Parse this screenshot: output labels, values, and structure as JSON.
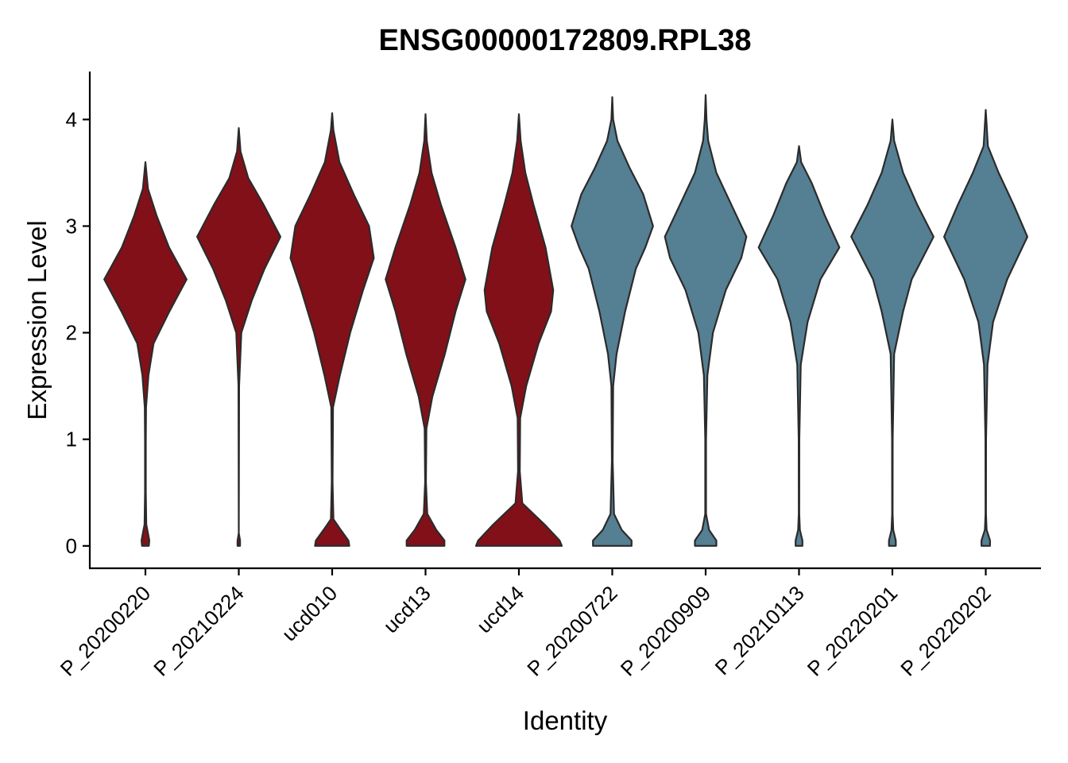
{
  "chart_data": {
    "type": "violin",
    "title": "ENSG00000172809.RPL38",
    "xlabel": "Identity",
    "ylabel": "Expression Level",
    "ylim": [
      -0.21,
      4.45
    ],
    "yticks": [
      0,
      1,
      2,
      3,
      4
    ],
    "grid": false,
    "legend": "none",
    "colors": {
      "red": "#821019",
      "blue": "#557f92"
    },
    "categories": [
      "P_20200220",
      "P_20210224",
      "ucd010",
      "ucd13",
      "ucd14",
      "P_20200722",
      "P_20200909",
      "P_20210113",
      "P_20220201",
      "P_20220202"
    ],
    "violins": [
      {
        "name": "P_20200220",
        "color": "red",
        "ymax": 3.6,
        "profile": [
          [
            0,
            0.08
          ],
          [
            0.05,
            0.09
          ],
          [
            0.12,
            0.06
          ],
          [
            0.2,
            0.02
          ],
          [
            0.5,
            0.01
          ],
          [
            1.0,
            0.01
          ],
          [
            1.3,
            0.015
          ],
          [
            1.6,
            0.07
          ],
          [
            1.9,
            0.19
          ],
          [
            2.2,
            0.56
          ],
          [
            2.5,
            0.96
          ],
          [
            2.8,
            0.55
          ],
          [
            3.1,
            0.26
          ],
          [
            3.35,
            0.06
          ],
          [
            3.6,
            0.0
          ]
        ]
      },
      {
        "name": "P_20210224",
        "color": "red",
        "ymax": 3.92,
        "profile": [
          [
            0,
            0.03
          ],
          [
            0.05,
            0.03
          ],
          [
            0.12,
            0.0
          ],
          [
            1.5,
            0.008
          ],
          [
            2.0,
            0.06
          ],
          [
            2.3,
            0.3
          ],
          [
            2.6,
            0.6
          ],
          [
            2.9,
            0.97
          ],
          [
            3.2,
            0.58
          ],
          [
            3.45,
            0.22
          ],
          [
            3.7,
            0.04
          ],
          [
            3.92,
            0.0
          ]
        ]
      },
      {
        "name": "ucd010",
        "color": "red",
        "ymax": 4.06,
        "profile": [
          [
            0,
            0.4
          ],
          [
            0.05,
            0.38
          ],
          [
            0.15,
            0.2
          ],
          [
            0.25,
            0.03
          ],
          [
            0.6,
            0.01
          ],
          [
            1.3,
            0.02
          ],
          [
            1.6,
            0.18
          ],
          [
            2.0,
            0.42
          ],
          [
            2.4,
            0.72
          ],
          [
            2.7,
            0.97
          ],
          [
            3.0,
            0.86
          ],
          [
            3.3,
            0.5
          ],
          [
            3.6,
            0.17
          ],
          [
            3.9,
            0.03
          ],
          [
            4.06,
            0.0
          ]
        ]
      },
      {
        "name": "ucd13",
        "color": "red",
        "ymax": 4.05,
        "profile": [
          [
            0,
            0.44
          ],
          [
            0.05,
            0.44
          ],
          [
            0.15,
            0.25
          ],
          [
            0.3,
            0.04
          ],
          [
            0.6,
            0.01
          ],
          [
            1.1,
            0.02
          ],
          [
            1.4,
            0.16
          ],
          [
            1.8,
            0.45
          ],
          [
            2.2,
            0.7
          ],
          [
            2.5,
            0.93
          ],
          [
            2.8,
            0.7
          ],
          [
            3.2,
            0.36
          ],
          [
            3.5,
            0.14
          ],
          [
            3.8,
            0.03
          ],
          [
            4.05,
            0.0
          ]
        ]
      },
      {
        "name": "ucd14",
        "color": "red",
        "ymax": 4.05,
        "profile": [
          [
            0,
            1.0
          ],
          [
            0.05,
            0.95
          ],
          [
            0.2,
            0.6
          ],
          [
            0.4,
            0.08
          ],
          [
            0.7,
            0.02
          ],
          [
            1.2,
            0.03
          ],
          [
            1.5,
            0.17
          ],
          [
            1.9,
            0.46
          ],
          [
            2.2,
            0.75
          ],
          [
            2.4,
            0.8
          ],
          [
            2.8,
            0.62
          ],
          [
            3.2,
            0.34
          ],
          [
            3.5,
            0.15
          ],
          [
            3.8,
            0.04
          ],
          [
            4.05,
            0.0
          ]
        ]
      },
      {
        "name": "P_20200722",
        "color": "blue",
        "ymax": 4.21,
        "profile": [
          [
            0,
            0.45
          ],
          [
            0.05,
            0.45
          ],
          [
            0.15,
            0.22
          ],
          [
            0.3,
            0.04
          ],
          [
            0.8,
            0.01
          ],
          [
            1.5,
            0.02
          ],
          [
            1.8,
            0.1
          ],
          [
            2.2,
            0.3
          ],
          [
            2.6,
            0.55
          ],
          [
            2.8,
            0.77
          ],
          [
            3.0,
            0.95
          ],
          [
            3.3,
            0.72
          ],
          [
            3.55,
            0.4
          ],
          [
            3.8,
            0.12
          ],
          [
            4.0,
            0.02
          ],
          [
            4.21,
            0.0
          ]
        ]
      },
      {
        "name": "P_20200909",
        "color": "blue",
        "ymax": 4.23,
        "profile": [
          [
            0,
            0.25
          ],
          [
            0.05,
            0.25
          ],
          [
            0.15,
            0.08
          ],
          [
            0.3,
            0.01
          ],
          [
            1.0,
            0.01
          ],
          [
            1.6,
            0.04
          ],
          [
            2.0,
            0.17
          ],
          [
            2.4,
            0.47
          ],
          [
            2.7,
            0.83
          ],
          [
            2.9,
            0.95
          ],
          [
            3.2,
            0.6
          ],
          [
            3.5,
            0.25
          ],
          [
            3.8,
            0.06
          ],
          [
            4.0,
            0.02
          ],
          [
            4.23,
            0.0
          ]
        ]
      },
      {
        "name": "P_20210113",
        "color": "blue",
        "ymax": 3.75,
        "profile": [
          [
            0,
            0.08
          ],
          [
            0.05,
            0.08
          ],
          [
            0.15,
            0.02
          ],
          [
            0.3,
            0.005
          ],
          [
            1.0,
            0.008
          ],
          [
            1.7,
            0.04
          ],
          [
            2.1,
            0.2
          ],
          [
            2.5,
            0.5
          ],
          [
            2.8,
            0.94
          ],
          [
            3.1,
            0.6
          ],
          [
            3.4,
            0.3
          ],
          [
            3.6,
            0.05
          ],
          [
            3.75,
            0.0
          ]
        ]
      },
      {
        "name": "P_20220201",
        "color": "blue",
        "ymax": 4.0,
        "profile": [
          [
            0,
            0.08
          ],
          [
            0.05,
            0.08
          ],
          [
            0.15,
            0.02
          ],
          [
            0.3,
            0.005
          ],
          [
            1.0,
            0.008
          ],
          [
            1.8,
            0.04
          ],
          [
            2.2,
            0.25
          ],
          [
            2.5,
            0.45
          ],
          [
            2.9,
            0.96
          ],
          [
            3.2,
            0.58
          ],
          [
            3.5,
            0.25
          ],
          [
            3.8,
            0.04
          ],
          [
            4.0,
            0.0
          ]
        ]
      },
      {
        "name": "P_20220202",
        "color": "blue",
        "ymax": 4.09,
        "profile": [
          [
            0,
            0.1
          ],
          [
            0.05,
            0.1
          ],
          [
            0.15,
            0.02
          ],
          [
            0.3,
            0.005
          ],
          [
            1.0,
            0.008
          ],
          [
            1.7,
            0.04
          ],
          [
            2.1,
            0.17
          ],
          [
            2.5,
            0.5
          ],
          [
            2.9,
            0.97
          ],
          [
            3.2,
            0.65
          ],
          [
            3.5,
            0.3
          ],
          [
            3.75,
            0.05
          ],
          [
            4.09,
            0.0
          ]
        ]
      }
    ]
  }
}
